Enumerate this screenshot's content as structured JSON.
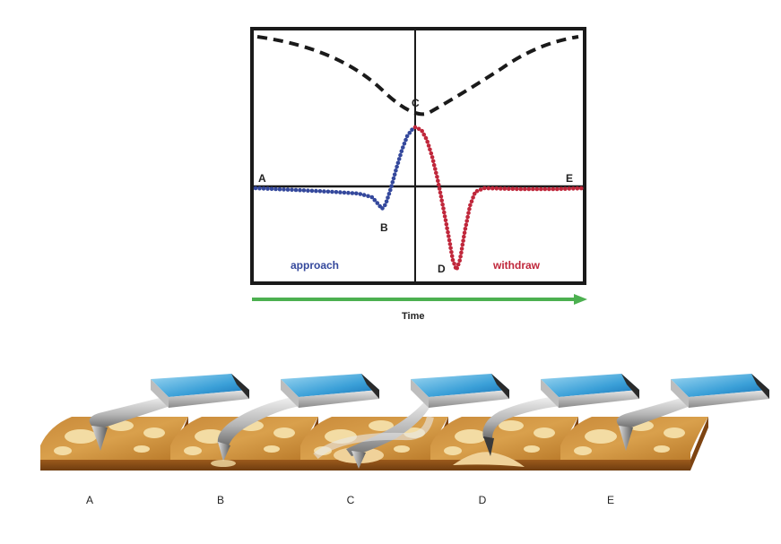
{
  "graph": {
    "point_labels": {
      "A": "A",
      "B": "B",
      "C": "C",
      "D": "D",
      "E": "E"
    },
    "approach_label": "approach",
    "withdraw_label": "withdraw",
    "time_label": "Time",
    "colors": {
      "approach": "#34489c",
      "withdraw": "#c0273b",
      "time_arrow": "#4cb050",
      "frame": "#1a1a1a"
    }
  },
  "stages": [
    {
      "label": "A"
    },
    {
      "label": "B"
    },
    {
      "label": "C"
    },
    {
      "label": "D"
    },
    {
      "label": "E"
    }
  ]
}
